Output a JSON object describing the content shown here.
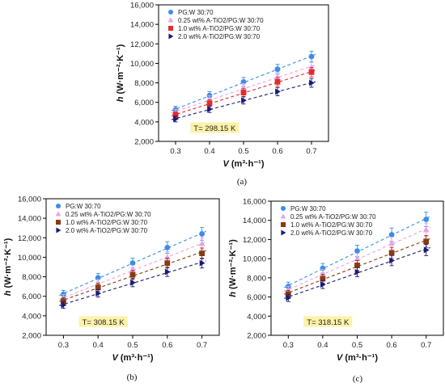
{
  "chart_data": [
    {
      "panel_label": "(a)",
      "type": "scatter",
      "xlabel_var": "V",
      "xlabel_unit": "(m³·h⁻¹)",
      "ylabel_var": "h",
      "ylabel_unit": "(W·m⁻²·K⁻¹)",
      "x": [
        0.3,
        0.4,
        0.5,
        0.6,
        0.7
      ],
      "xlim": [
        0.25,
        0.75
      ],
      "ylim": [
        2000,
        16000
      ],
      "xticks": [
        "0.3",
        "0.4",
        "0.5",
        "0.6",
        "0.7"
      ],
      "yticks": [
        "2,000",
        "4,000",
        "6,000",
        "8,000",
        "10,000",
        "12,000",
        "14,000",
        "16,000"
      ],
      "annotation": "T= 298.15 K",
      "legend_position": "top-left",
      "series": [
        {
          "name": "PG:W 30:70",
          "values": [
            5250,
            6700,
            8100,
            9400,
            10700
          ],
          "err": [
            350,
            400,
            450,
            500,
            550
          ],
          "color": "#3a8ee6",
          "marker": "circle"
        },
        {
          "name": "0.25 wt% A-TiO2/PG:W 30:70",
          "values": [
            4950,
            6300,
            7500,
            8600,
            9600
          ],
          "err": [
            330,
            380,
            420,
            470,
            500
          ],
          "color": "#e8a2e8",
          "marker": "triangle-up"
        },
        {
          "name": "1.0 wt% A-TiO2/PG:W 30:70",
          "values": [
            4700,
            5900,
            7000,
            8100,
            9100
          ],
          "err": [
            320,
            360,
            400,
            450,
            480
          ],
          "color": "#e32b2b",
          "marker": "square"
        },
        {
          "name": "2.0 wt% A-TiO2/PG:W 30:70",
          "values": [
            4300,
            5300,
            6200,
            7100,
            8000
          ],
          "err": [
            300,
            340,
            370,
            420,
            450
          ],
          "color": "#1a1a7a",
          "marker": "triangle-right"
        }
      ]
    },
    {
      "panel_label": "(b)",
      "type": "scatter",
      "xlabel_var": "V",
      "xlabel_unit": "(m³·h⁻¹)",
      "ylabel_var": "h",
      "ylabel_unit": "(W·m⁻²·K⁻¹)",
      "x": [
        0.3,
        0.4,
        0.5,
        0.6,
        0.7
      ],
      "xlim": [
        0.25,
        0.75
      ],
      "ylim": [
        2000,
        16000
      ],
      "xticks": [
        "0.3",
        "0.4",
        "0.5",
        "0.6",
        "0.7"
      ],
      "yticks": [
        "2,000",
        "4,000",
        "6,000",
        "8,000",
        "10,000",
        "12,000",
        "14,000",
        "16,000"
      ],
      "annotation": "T= 308.15 K",
      "legend_position": "top-left",
      "series": [
        {
          "name": "PG:W 30:70",
          "values": [
            6200,
            7900,
            9400,
            11000,
            12400
          ],
          "err": [
            400,
            450,
            500,
            600,
            650
          ],
          "color": "#3a8ee6",
          "marker": "circle"
        },
        {
          "name": "0.25 wt% A-TiO2/PG:W 30:70",
          "values": [
            5800,
            7300,
            8700,
            10000,
            11400
          ],
          "err": [
            380,
            420,
            480,
            550,
            600
          ],
          "color": "#e8a2e8",
          "marker": "triangle-up"
        },
        {
          "name": "1.0 wt% A-TiO2/PG:W 30:70",
          "values": [
            5500,
            6900,
            8200,
            9400,
            10400
          ],
          "err": [
            360,
            400,
            450,
            500,
            550
          ],
          "color": "#8b3a0e",
          "marker": "square"
        },
        {
          "name": "2.0 wt% A-TiO2/PG:W 30:70",
          "values": [
            5100,
            6300,
            7400,
            8500,
            9400
          ],
          "err": [
            340,
            380,
            420,
            470,
            500
          ],
          "color": "#1a1a7a",
          "marker": "triangle-right"
        }
      ]
    },
    {
      "panel_label": "(c)",
      "type": "scatter",
      "xlabel_var": "V",
      "xlabel_unit": "(m³·h⁻¹)",
      "ylabel_var": "h",
      "ylabel_unit": "(W·m⁻²·K⁻¹)",
      "x": [
        0.3,
        0.4,
        0.5,
        0.6,
        0.7
      ],
      "xlim": [
        0.25,
        0.75
      ],
      "ylim": [
        2000,
        16000
      ],
      "xticks": [
        "0.3",
        "0.4",
        "0.5",
        "0.6",
        "0.7"
      ],
      "yticks": [
        "2,000",
        "4,000",
        "6,000",
        "8,000",
        "10,000",
        "12,000",
        "14,000",
        "16,000"
      ],
      "annotation": "T= 318.15 K",
      "legend_position": "top-left",
      "series": [
        {
          "name": "PG:W 30:70",
          "values": [
            7100,
            9000,
            10800,
            12500,
            14100
          ],
          "err": [
            450,
            500,
            600,
            700,
            750
          ],
          "color": "#3a8ee6",
          "marker": "circle"
        },
        {
          "name": "0.25 wt% A-TiO2/PG:W 30:70",
          "values": [
            6700,
            8400,
            10000,
            11600,
            13000
          ],
          "err": [
            420,
            480,
            550,
            650,
            700
          ],
          "color": "#e8a2e8",
          "marker": "triangle-up"
        },
        {
          "name": "1.0 wt% A-TiO2/PG:W 30:70",
          "values": [
            6300,
            7900,
            9300,
            10600,
            11800
          ],
          "err": [
            400,
            450,
            500,
            580,
            620
          ],
          "color": "#8b3a0e",
          "marker": "square"
        },
        {
          "name": "2.0 wt% A-TiO2/PG:W 30:70",
          "values": [
            5900,
            7300,
            8600,
            9800,
            10900
          ],
          "err": [
            380,
            420,
            480,
            530,
            580
          ],
          "color": "#1a1a7a",
          "marker": "triangle-right"
        }
      ]
    }
  ]
}
